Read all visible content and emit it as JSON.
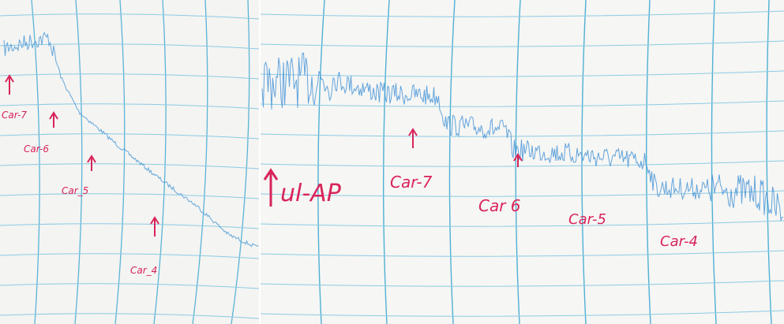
{
  "left_panel": {
    "labels": [
      "Car-7",
      "Car-6",
      "Car_5",
      "Car_4"
    ]
  },
  "right_panel": {
    "labels": [
      "ul-AP",
      "Car-7",
      "Car 6",
      "Car-5",
      "Car-4"
    ]
  }
}
